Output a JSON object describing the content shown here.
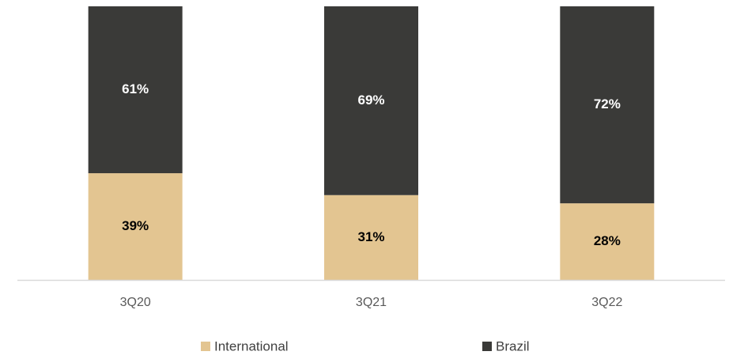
{
  "chart_data": {
    "type": "stacked_bar",
    "categories": [
      "3Q20",
      "3Q21",
      "3Q22"
    ],
    "series": [
      {
        "name": "International",
        "color": "#e3c591",
        "values": [
          39,
          31,
          28
        ],
        "value_labels": [
          "39%",
          "31%",
          "28%"
        ]
      },
      {
        "name": "Brazil",
        "color": "#3a3a38",
        "values": [
          61,
          69,
          72
        ],
        "value_labels": [
          "61%",
          "69%",
          "72%"
        ]
      }
    ],
    "ylim": [
      0,
      100
    ]
  }
}
